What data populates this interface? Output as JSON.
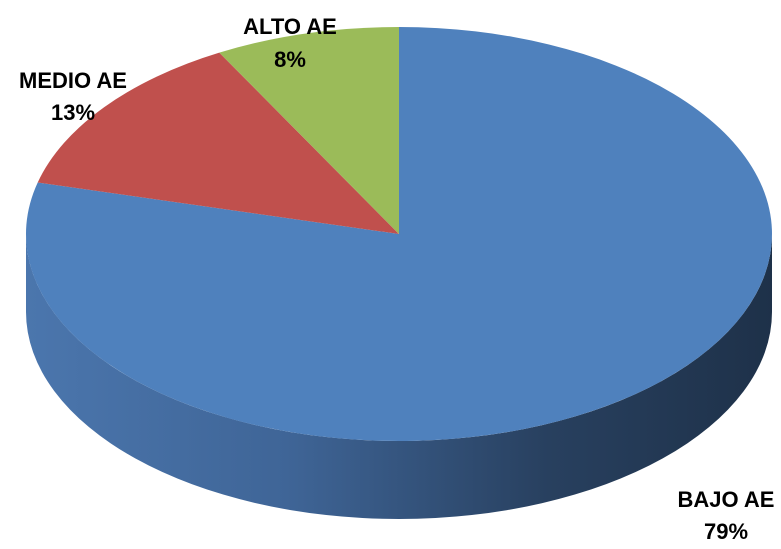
{
  "chart_data": {
    "type": "pie",
    "style": "3d",
    "start": "top, clockwise",
    "slices": [
      {
        "label": "BAJO AE",
        "value": 79,
        "value_label": "79%",
        "color": "#4F81BD"
      },
      {
        "label": "MEDIO AE",
        "value": 13,
        "value_label": "13%",
        "color": "#C0504D"
      },
      {
        "label": "ALTO AE",
        "value": 8,
        "value_label": "8%",
        "color": "#9BBB59"
      }
    ]
  }
}
